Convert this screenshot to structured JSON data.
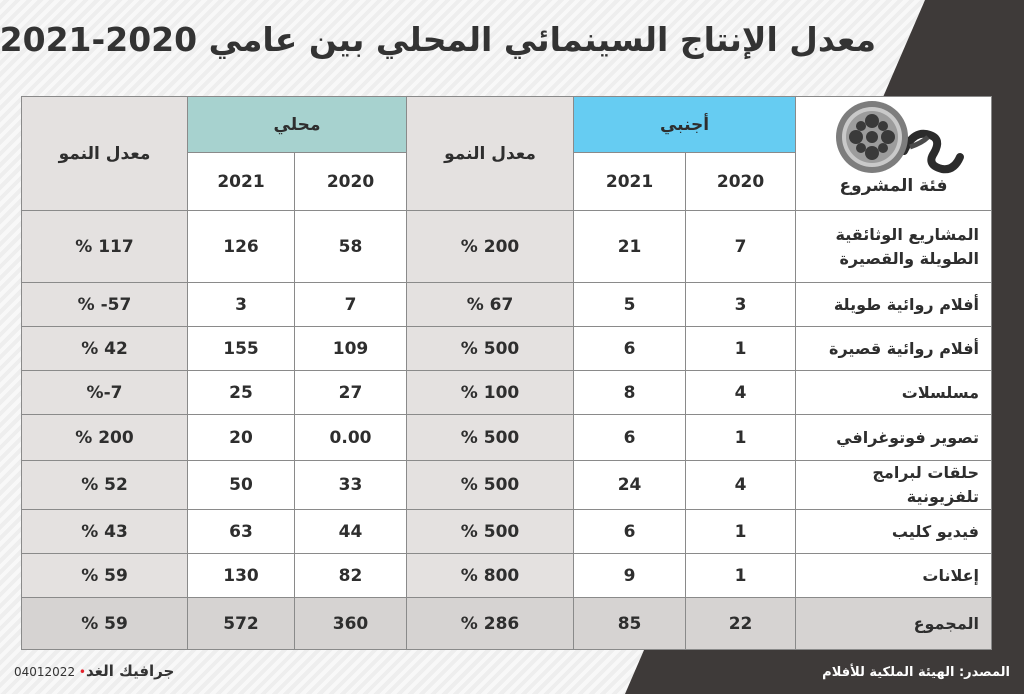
{
  "title": "معدل الإنتاج السينمائي المحلي بين عامي 2020-2021",
  "chart_data": {
    "type": "table",
    "column_groups": {
      "category": "فئة المشروع",
      "foreign": "أجنبي",
      "local": "محلي",
      "growth": "معدل النمو"
    },
    "years": [
      "2020",
      "2021"
    ],
    "rows": [
      {
        "category": "المشاريع الوثائقية الطويلة والقصيرة",
        "foreign_2020": "7",
        "foreign_2021": "21",
        "foreign_growth": "200 %",
        "local_2020": "58",
        "local_2021": "126",
        "local_growth": "117 %"
      },
      {
        "category": "أفلام روائية طويلة",
        "foreign_2020": "3",
        "foreign_2021": "5",
        "foreign_growth": "67 %",
        "local_2020": "7",
        "local_2021": "3",
        "local_growth": "57- %"
      },
      {
        "category": "أفلام روائية قصيرة",
        "foreign_2020": "1",
        "foreign_2021": "6",
        "foreign_growth": "500 %",
        "local_2020": "109",
        "local_2021": "155",
        "local_growth": "42 %"
      },
      {
        "category": "مسلسلات",
        "foreign_2020": "4",
        "foreign_2021": "8",
        "foreign_growth": "100 %",
        "local_2020": "27",
        "local_2021": "25",
        "local_growth": "7-%"
      },
      {
        "category": "تصوير فوتوغرافي",
        "foreign_2020": "1",
        "foreign_2021": "6",
        "foreign_growth": "500 %",
        "local_2020": "0.00",
        "local_2021": "20",
        "local_growth": "200 %"
      },
      {
        "category": "حلقات لبرامج تلفزيونية",
        "foreign_2020": "4",
        "foreign_2021": "24",
        "foreign_growth": "500 %",
        "local_2020": "33",
        "local_2021": "50",
        "local_growth": "52 %"
      },
      {
        "category": "فيديو كليب",
        "foreign_2020": "1",
        "foreign_2021": "6",
        "foreign_growth": "500 %",
        "local_2020": "44",
        "local_2021": "63",
        "local_growth": "43 %"
      },
      {
        "category": "إعلانات",
        "foreign_2020": "1",
        "foreign_2021": "9",
        "foreign_growth": "800 %",
        "local_2020": "82",
        "local_2021": "130",
        "local_growth": "59 %"
      }
    ],
    "total": {
      "category": "المجموع",
      "foreign_2020": "22",
      "foreign_2021": "85",
      "foreign_growth": "286 %",
      "local_2020": "360",
      "local_2021": "572",
      "local_growth": "59 %"
    }
  },
  "colors": {
    "foreign_header": "#66ccf2",
    "local_header": "#a7d2cf",
    "growth_fill": "#e4e1e0",
    "total_fill": "#d6d3d2",
    "dark_band": "#3e3a39",
    "brand_dot": "#e4212b"
  },
  "icon": "film-reel-icon",
  "footer": {
    "source": "المصدر: الهيئة الملكية للأفلام",
    "graphic_label": "جرافيك الغد",
    "graphic_code": "04012022"
  }
}
